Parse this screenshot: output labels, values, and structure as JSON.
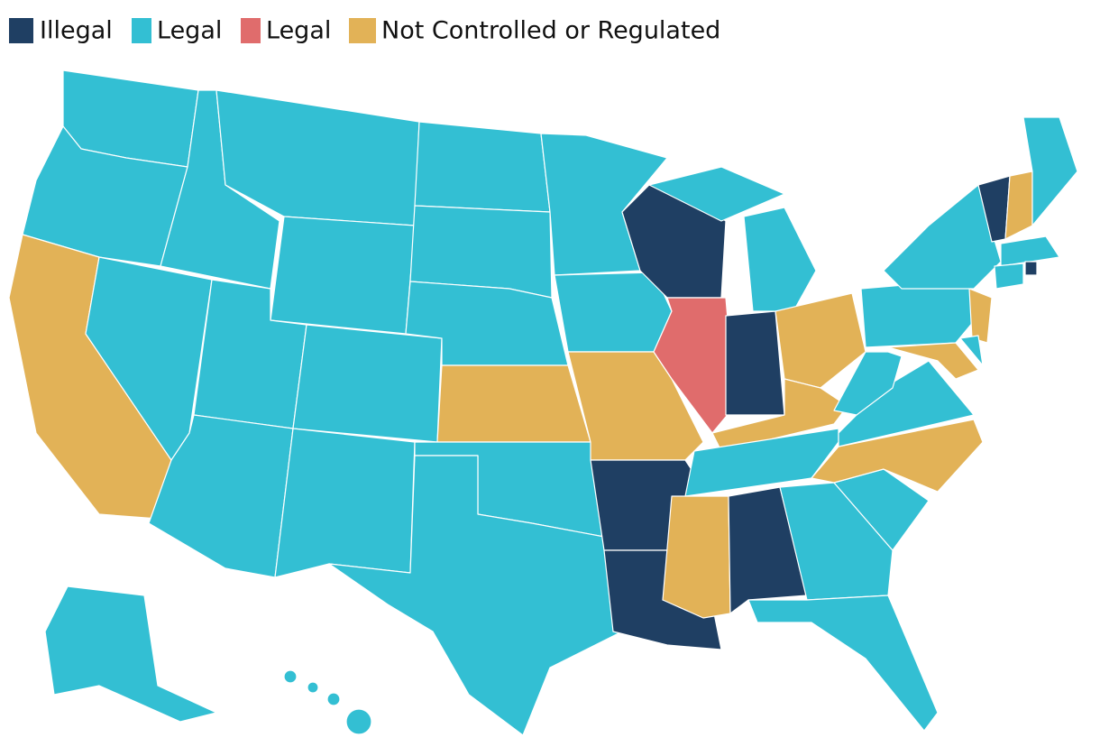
{
  "legend": {
    "items": [
      {
        "label": "Illegal",
        "color": "#1f3f63"
      },
      {
        "label": "Legal",
        "color": "#33bfd3"
      },
      {
        "label": "Legal",
        "color": "#e06c6c"
      },
      {
        "label": "Not Controlled or Regulated",
        "color": "#e2b257"
      }
    ]
  }
}
